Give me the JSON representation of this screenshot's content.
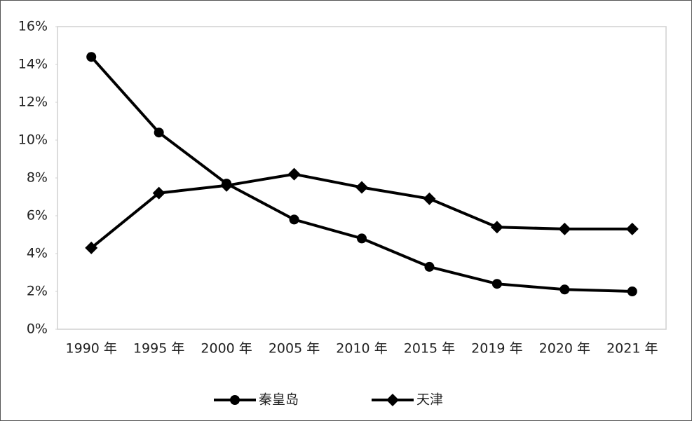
{
  "chart_data": {
    "type": "line",
    "categories": [
      "1990 年",
      "1995 年",
      "2000 年",
      "2005 年",
      "2010 年",
      "2015 年",
      "2019 年",
      "2020 年",
      "2021 年"
    ],
    "series": [
      {
        "name": "秦皇岛",
        "color": "#000000",
        "marker": "circle",
        "values": [
          14.4,
          10.4,
          7.7,
          5.8,
          4.8,
          3.3,
          2.4,
          2.1,
          2.0
        ]
      },
      {
        "name": "天津",
        "color": "#000000",
        "marker": "diamond",
        "values": [
          4.3,
          7.2,
          7.6,
          8.2,
          7.5,
          6.9,
          5.4,
          5.3,
          5.3
        ]
      }
    ],
    "ylim": [
      0,
      16
    ],
    "yticks": [
      {
        "value": 0,
        "label": "0%"
      },
      {
        "value": 2,
        "label": "2%"
      },
      {
        "value": 4,
        "label": "4%"
      },
      {
        "value": 6,
        "label": "6%"
      },
      {
        "value": 8,
        "label": "8%"
      },
      {
        "value": 10,
        "label": "10%"
      },
      {
        "value": 12,
        "label": "12%"
      },
      {
        "value": 14,
        "label": "14%"
      },
      {
        "value": 16,
        "label": "16%"
      }
    ],
    "grid": false,
    "legend": "bottom"
  }
}
